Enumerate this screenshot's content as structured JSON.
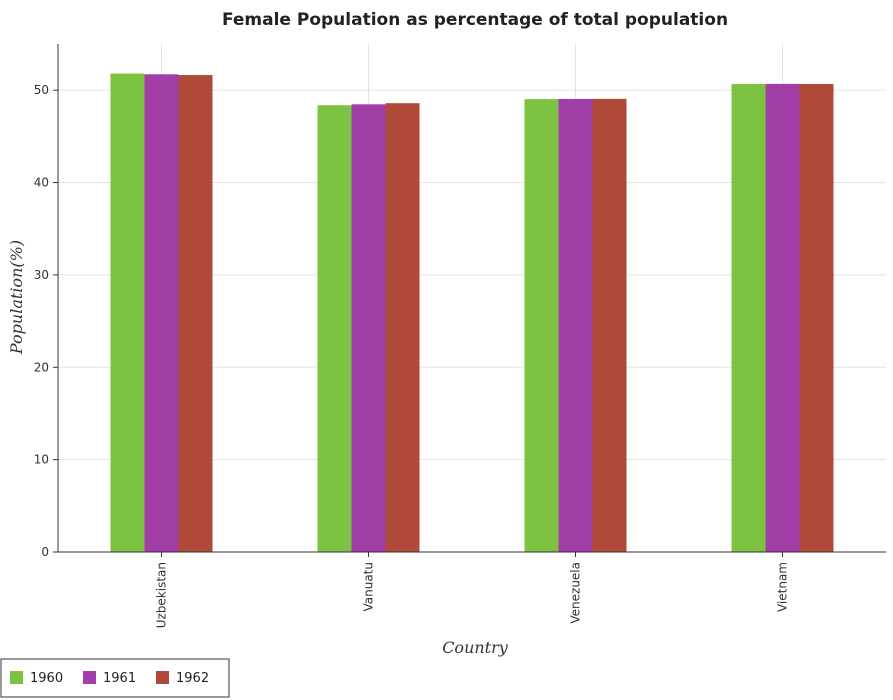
{
  "chart_data": {
    "type": "bar",
    "title": "Female Population as percentage of total population",
    "xlabel": "Country",
    "ylabel": "Population(%)",
    "categories": [
      "Uzbekistan",
      "Vanuatu",
      "Venezuela",
      "Vietnam"
    ],
    "series": [
      {
        "name": "1960",
        "color": "#7ec242",
        "values": [
          51.8,
          48.37,
          49.03,
          50.68
        ]
      },
      {
        "name": "1961",
        "color": "#a23ea8",
        "values": [
          51.72,
          48.47,
          49.05,
          50.68
        ]
      },
      {
        "name": "1962",
        "color": "#b04a38",
        "values": [
          51.64,
          48.59,
          49.06,
          50.67
        ]
      }
    ],
    "ylim": [
      0,
      55
    ],
    "yticks": [
      0,
      10,
      20,
      30,
      40,
      50
    ],
    "grid": true,
    "legend_position": "bottom-left"
  }
}
